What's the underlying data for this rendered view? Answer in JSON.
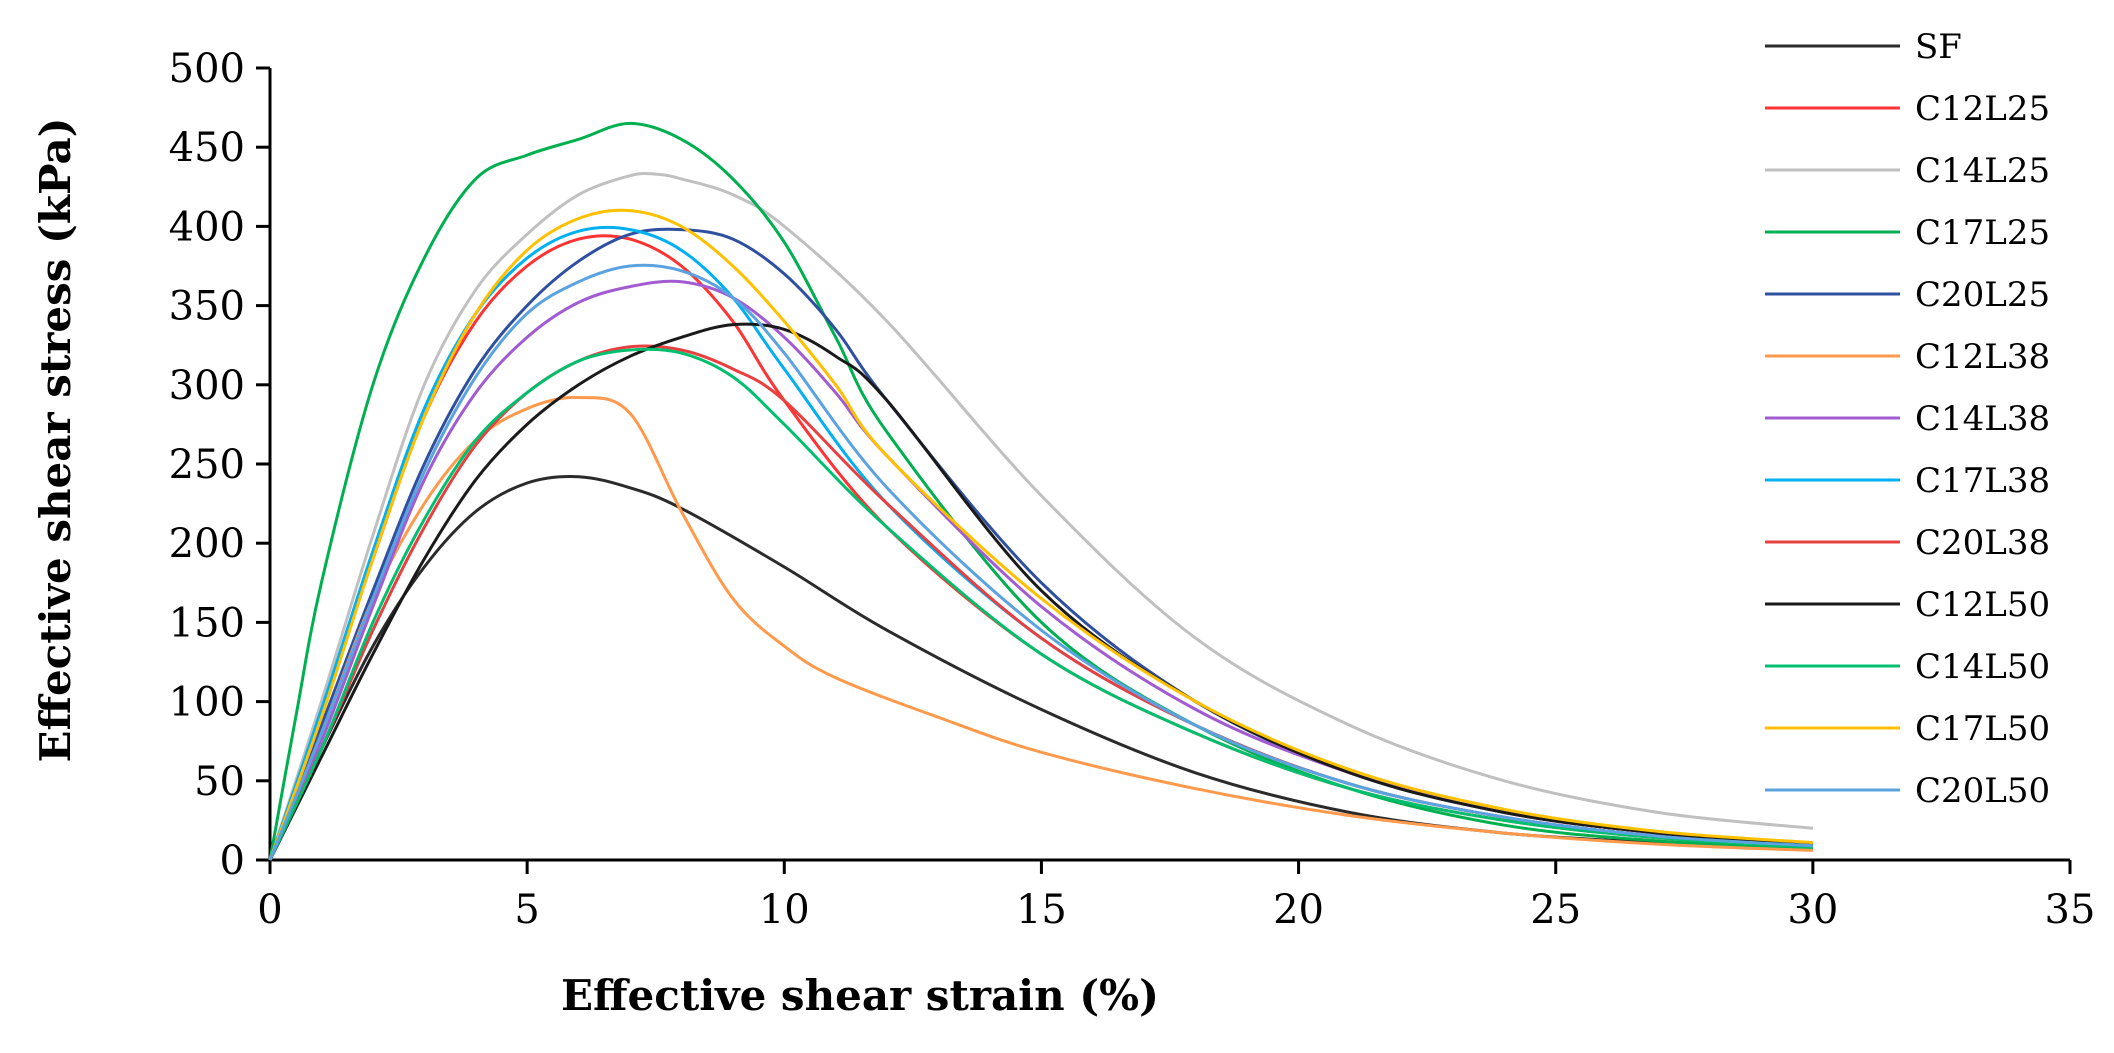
{
  "chart_data": {
    "type": "line",
    "title": "",
    "xlabel": "Effective shear strain (%)",
    "ylabel": "Effective shear stress (kPa)",
    "xlim": [
      0,
      35
    ],
    "ylim": [
      0,
      500
    ],
    "xticks": [
      0,
      5,
      10,
      15,
      20,
      25,
      30,
      35
    ],
    "yticks": [
      0,
      50,
      100,
      150,
      200,
      250,
      300,
      350,
      400,
      450,
      500
    ],
    "grid": false,
    "legend_position": "right",
    "series": [
      {
        "name": "SF",
        "color": "#2b2b2b",
        "x": [
          0,
          1,
          2,
          3,
          4,
          5,
          6,
          7,
          8,
          10,
          12,
          15,
          18,
          21,
          24,
          27,
          30
        ],
        "y": [
          0,
          70,
          135,
          185,
          220,
          238,
          242,
          235,
          222,
          185,
          145,
          95,
          55,
          30,
          17,
          11,
          7
        ]
      },
      {
        "name": "C12L25",
        "color": "#ff3333",
        "x": [
          0,
          1,
          2,
          3,
          4,
          5,
          6,
          7,
          8,
          9,
          10,
          12,
          15,
          18,
          21,
          24,
          27,
          30
        ],
        "y": [
          0,
          95,
          190,
          280,
          340,
          375,
          392,
          392,
          375,
          340,
          290,
          210,
          130,
          80,
          45,
          25,
          14,
          8
        ]
      },
      {
        "name": "C14L25",
        "color": "#c0c0c0",
        "x": [
          0,
          1,
          2,
          3,
          4,
          5,
          6,
          7,
          7.5,
          8,
          9,
          10,
          12,
          15,
          18,
          21,
          24,
          27,
          30
        ],
        "y": [
          0,
          100,
          205,
          300,
          360,
          395,
          420,
          432,
          433,
          430,
          420,
          400,
          340,
          230,
          140,
          85,
          50,
          30,
          20
        ]
      },
      {
        "name": "C17L25",
        "color": "#00b050",
        "x": [
          0,
          0.5,
          1,
          2,
          3,
          4,
          5,
          6,
          7,
          8,
          9,
          10,
          11,
          12,
          15,
          18,
          21,
          24,
          27,
          30
        ],
        "y": [
          0,
          90,
          175,
          300,
          380,
          430,
          445,
          455,
          465,
          455,
          430,
          390,
          330,
          270,
          150,
          85,
          45,
          22,
          12,
          7
        ]
      },
      {
        "name": "C20L25",
        "color": "#2f4f9f",
        "x": [
          0,
          1,
          2,
          3,
          4,
          5,
          6,
          7,
          8,
          9,
          10,
          11,
          12,
          15,
          18,
          21,
          24,
          27,
          30
        ],
        "y": [
          0,
          85,
          170,
          250,
          310,
          350,
          378,
          395,
          398,
          392,
          370,
          335,
          290,
          175,
          100,
          55,
          30,
          17,
          10
        ]
      },
      {
        "name": "C12L38",
        "color": "#ff9a4d",
        "x": [
          0,
          1,
          2,
          3,
          4,
          5,
          6,
          7,
          8,
          9,
          10,
          11,
          13,
          15,
          18,
          21,
          24,
          27,
          30
        ],
        "y": [
          0,
          80,
          165,
          225,
          265,
          285,
          292,
          282,
          220,
          165,
          135,
          115,
          90,
          68,
          45,
          28,
          17,
          10,
          6
        ]
      },
      {
        "name": "C14L38",
        "color": "#a05cd0",
        "x": [
          0,
          1,
          2,
          3,
          4,
          5,
          6,
          7,
          8,
          9,
          10,
          11,
          12,
          15,
          18,
          21,
          24,
          27,
          30
        ],
        "y": [
          0,
          75,
          160,
          240,
          295,
          330,
          352,
          362,
          365,
          355,
          330,
          295,
          255,
          160,
          95,
          55,
          30,
          17,
          10
        ]
      },
      {
        "name": "C17L38",
        "color": "#00b0f0",
        "x": [
          0,
          1,
          2,
          3,
          4,
          5,
          6,
          7,
          8,
          9,
          10,
          12,
          15,
          18,
          21,
          24,
          27,
          30
        ],
        "y": [
          0,
          95,
          195,
          285,
          345,
          380,
          397,
          398,
          385,
          355,
          310,
          225,
          140,
          85,
          48,
          27,
          15,
          9
        ]
      },
      {
        "name": "C20L38",
        "color": "#e84040",
        "x": [
          0,
          1,
          2,
          3,
          4,
          5,
          6,
          7,
          8,
          9,
          10,
          12,
          15,
          18,
          21,
          24,
          27,
          30
        ],
        "y": [
          0,
          70,
          145,
          210,
          262,
          295,
          315,
          324,
          322,
          310,
          290,
          225,
          140,
          85,
          48,
          27,
          15,
          9
        ]
      },
      {
        "name": "C12L50",
        "color": "#1a1a1a",
        "x": [
          0,
          1,
          2,
          3,
          4,
          5,
          6,
          7,
          8,
          9,
          10,
          11,
          12,
          15,
          18,
          21,
          24,
          27,
          30
        ],
        "y": [
          0,
          65,
          130,
          190,
          240,
          275,
          300,
          318,
          330,
          338,
          335,
          318,
          290,
          170,
          100,
          55,
          30,
          17,
          10
        ]
      },
      {
        "name": "C14L50",
        "color": "#00c070",
        "x": [
          0,
          1,
          2,
          3,
          4,
          5,
          6,
          7,
          8,
          9,
          10,
          12,
          15,
          18,
          21,
          24,
          27,
          30
        ],
        "y": [
          0,
          70,
          150,
          215,
          265,
          295,
          315,
          322,
          320,
          305,
          275,
          210,
          130,
          80,
          45,
          25,
          14,
          8
        ]
      },
      {
        "name": "C17L50",
        "color": "#ffc000",
        "x": [
          0,
          1,
          2,
          3,
          4,
          5,
          6,
          7,
          8,
          9,
          10,
          11,
          12,
          15,
          18,
          21,
          24,
          27,
          30
        ],
        "y": [
          0,
          90,
          190,
          280,
          345,
          385,
          405,
          410,
          400,
          375,
          340,
          300,
          255,
          165,
          100,
          57,
          32,
          18,
          11
        ]
      },
      {
        "name": "C20L50",
        "color": "#5ba3e0",
        "x": [
          0,
          1,
          2,
          3,
          4,
          5,
          6,
          7,
          8,
          9,
          10,
          12,
          15,
          18,
          21,
          24,
          27,
          30
        ],
        "y": [
          0,
          80,
          165,
          245,
          305,
          345,
          365,
          375,
          372,
          355,
          320,
          235,
          145,
          85,
          48,
          27,
          15,
          9
        ]
      }
    ]
  }
}
